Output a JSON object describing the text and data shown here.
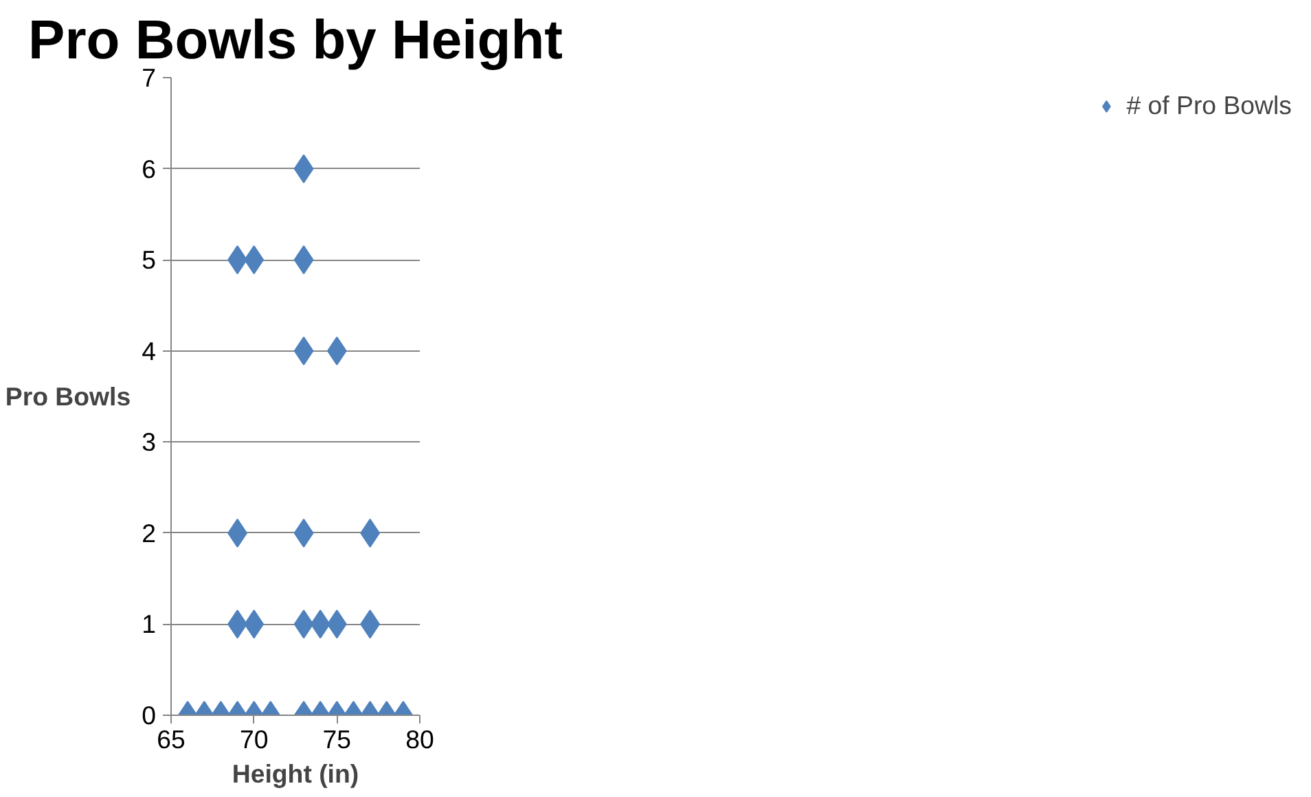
{
  "chart_data": {
    "type": "scatter",
    "title": "Pro Bowls by Height",
    "xlabel": "Height (in)",
    "ylabel": "Pro Bowls",
    "x": [
      66,
      67,
      68,
      69,
      70,
      71,
      73,
      74,
      75,
      76,
      77,
      78,
      79,
      69,
      70,
      73,
      74,
      75,
      77,
      69,
      73,
      77,
      73,
      75,
      69,
      70,
      73,
      73
    ],
    "series": [
      {
        "name": "# of Pro Bowls",
        "color": "#4f81bd",
        "values": [
          0,
          0,
          0,
          0,
          0,
          0,
          0,
          0,
          0,
          0,
          0,
          0,
          0,
          1,
          1,
          1,
          1,
          1,
          1,
          2,
          2,
          2,
          4,
          4,
          5,
          5,
          5,
          6
        ]
      }
    ],
    "xlim": [
      65,
      80
    ],
    "xticks": [
      65,
      70,
      75,
      80
    ],
    "ylim": [
      0,
      7
    ],
    "yticks": [
      0,
      1,
      2,
      3,
      4,
      5,
      6,
      7
    ],
    "grid": "y",
    "legend": "right",
    "marker": "diamond"
  }
}
